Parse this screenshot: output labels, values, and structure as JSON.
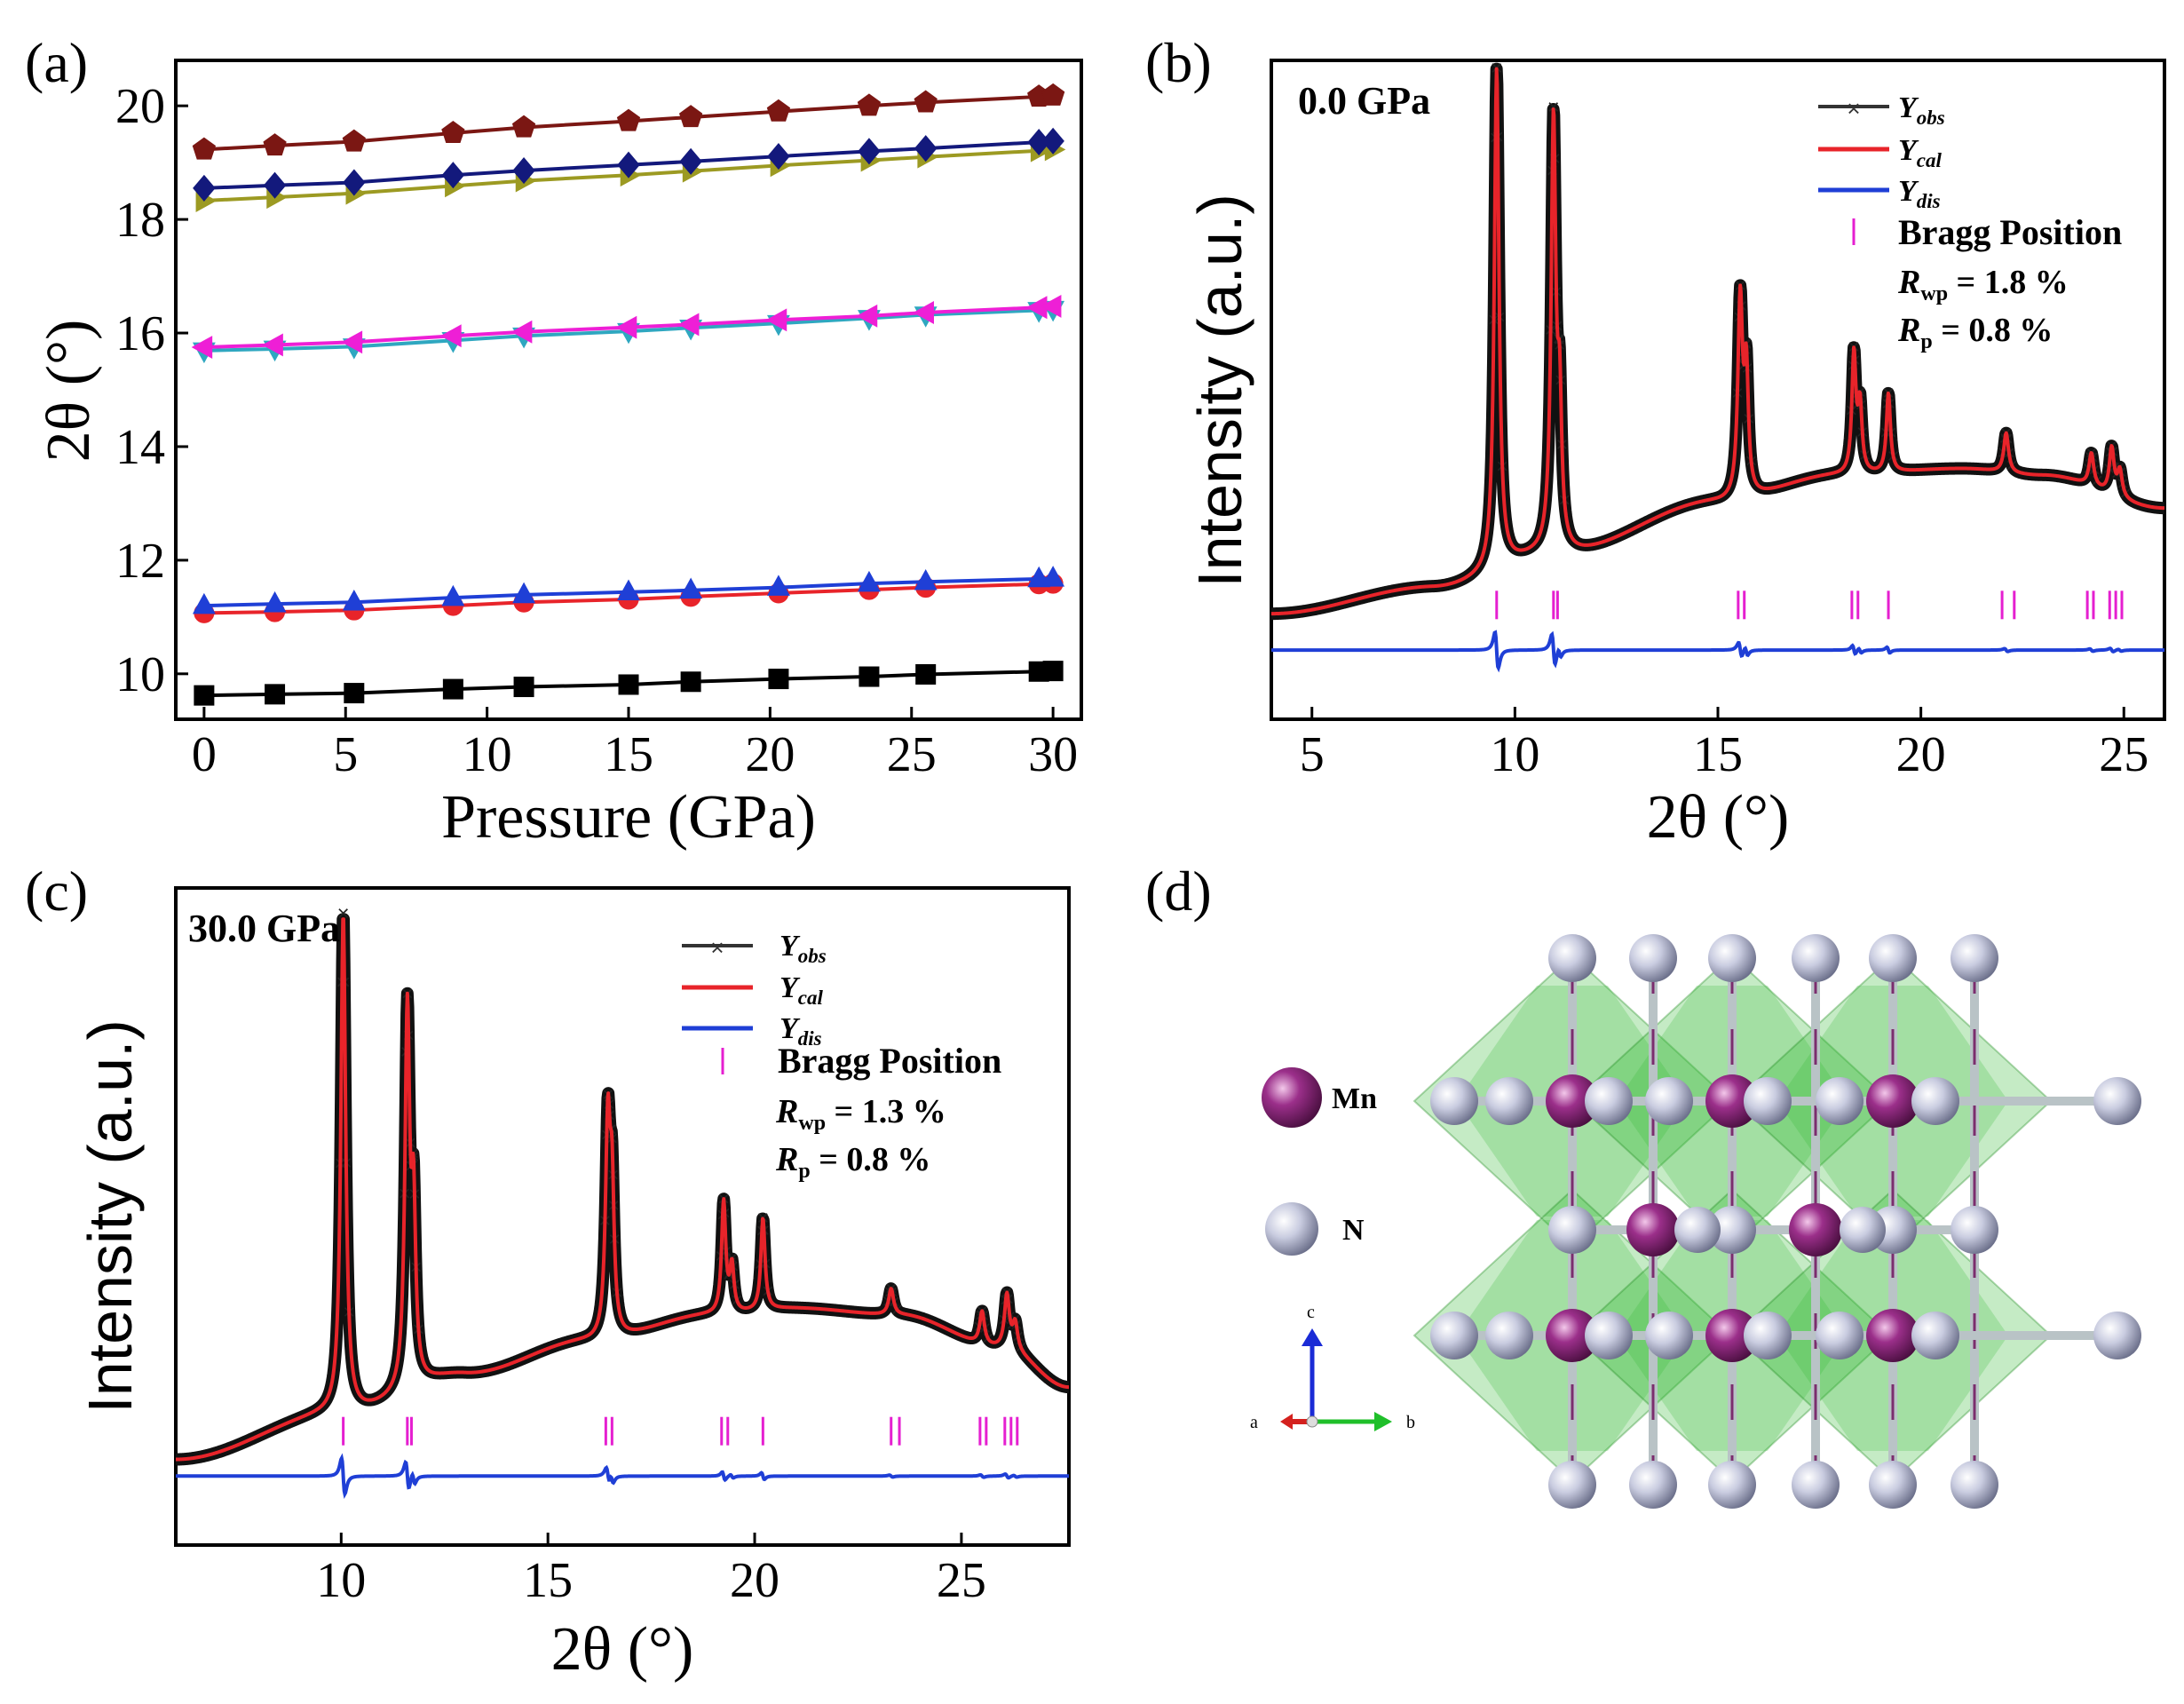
{
  "panels": {
    "a": {
      "label": "(a)"
    },
    "b": {
      "label": "(b)"
    },
    "c": {
      "label": "(c)"
    },
    "d": {
      "label": "(d)"
    }
  },
  "chart_data": [
    {
      "panel": "a",
      "type": "line",
      "xlabel": "Pressure (GPa)",
      "ylabel": "2θ (°)",
      "xlim": [
        -1,
        31
      ],
      "ylim": [
        9.2,
        20.8
      ],
      "xticks": [
        0,
        5,
        10,
        15,
        20,
        25,
        30
      ],
      "yticks": [
        10,
        12,
        14,
        16,
        18,
        20
      ],
      "x": [
        0,
        2.5,
        5.3,
        8.8,
        11.3,
        15,
        17.2,
        20.3,
        23.5,
        25.5,
        29.5,
        30
      ],
      "series": [
        {
          "name": "series-1",
          "color": "#000000",
          "marker": "square",
          "values": [
            9.62,
            9.64,
            9.66,
            9.73,
            9.77,
            9.81,
            9.86,
            9.91,
            9.95,
            9.99,
            10.04,
            10.05
          ]
        },
        {
          "name": "series-2",
          "color": "#e8242a",
          "marker": "circle",
          "values": [
            11.07,
            11.09,
            11.12,
            11.2,
            11.26,
            11.31,
            11.36,
            11.42,
            11.48,
            11.52,
            11.58,
            11.59
          ]
        },
        {
          "name": "series-3",
          "color": "#1f3fd6",
          "marker": "triangle-up",
          "values": [
            11.2,
            11.23,
            11.26,
            11.34,
            11.39,
            11.44,
            11.47,
            11.52,
            11.59,
            11.62,
            11.67,
            11.68
          ]
        },
        {
          "name": "series-4",
          "color": "#2fa7c0",
          "marker": "triangle-down",
          "values": [
            15.69,
            15.72,
            15.76,
            15.87,
            15.95,
            16.03,
            16.09,
            16.17,
            16.26,
            16.32,
            16.4,
            16.42
          ]
        },
        {
          "name": "series-5",
          "color": "#ee1fd6",
          "marker": "triangle-left",
          "values": [
            15.75,
            15.79,
            15.84,
            15.95,
            16.02,
            16.1,
            16.15,
            16.23,
            16.3,
            16.36,
            16.45,
            16.47
          ]
        },
        {
          "name": "series-6",
          "color": "#9c9a22",
          "marker": "triangle-right",
          "values": [
            18.33,
            18.39,
            18.46,
            18.59,
            18.68,
            18.78,
            18.85,
            18.95,
            19.04,
            19.1,
            19.21,
            19.23
          ]
        },
        {
          "name": "series-7",
          "color": "#13197c",
          "marker": "diamond",
          "values": [
            18.55,
            18.6,
            18.65,
            18.78,
            18.86,
            18.96,
            19.02,
            19.11,
            19.2,
            19.25,
            19.36,
            19.38
          ]
        },
        {
          "name": "series-8",
          "color": "#7b1713",
          "marker": "pentagon",
          "values": [
            19.23,
            19.3,
            19.37,
            19.52,
            19.62,
            19.73,
            19.8,
            19.9,
            20.0,
            20.06,
            20.16,
            20.18
          ]
        }
      ]
    },
    {
      "panel": "b",
      "type": "line",
      "title": "0.0 GPa",
      "xlabel": "2θ (°)",
      "ylabel": "Intensity (a.u.)",
      "xlim": [
        4,
        26
      ],
      "xticks": [
        5,
        10,
        15,
        20,
        25
      ],
      "yticks": [],
      "legend": {
        "obs": "Y",
        "obs_sub": "obs",
        "cal": "Y",
        "cal_sub": "cal",
        "dis": "Y",
        "dis_sub": "dis",
        "bragg": "Bragg Position"
      },
      "stats": {
        "rwp_sym": "R",
        "rwp_sub": "wp",
        "rwp_val": " = 1.8 %",
        "rp_sym": "R",
        "rp_sub": "p",
        "rp_val": " = 0.8 %"
      },
      "background": [
        [
          4,
          0.16
        ],
        [
          8,
          0.2
        ],
        [
          11,
          0.25
        ],
        [
          15,
          0.33
        ],
        [
          18,
          0.37
        ],
        [
          21,
          0.38
        ],
        [
          23,
          0.37
        ],
        [
          26,
          0.32
        ]
      ],
      "peaks": [
        {
          "pos": 9.55,
          "height": 0.76,
          "width": 0.07
        },
        {
          "pos": 10.95,
          "height": 0.65,
          "width": 0.07
        },
        {
          "pos": 11.1,
          "height": 0.2,
          "width": 0.06
        },
        {
          "pos": 15.55,
          "height": 0.3,
          "width": 0.07
        },
        {
          "pos": 15.7,
          "height": 0.18,
          "width": 0.06
        },
        {
          "pos": 18.35,
          "height": 0.18,
          "width": 0.06
        },
        {
          "pos": 18.5,
          "height": 0.1,
          "width": 0.06
        },
        {
          "pos": 19.2,
          "height": 0.12,
          "width": 0.06
        },
        {
          "pos": 22.1,
          "height": 0.06,
          "width": 0.07
        },
        {
          "pos": 24.2,
          "height": 0.05,
          "width": 0.07
        },
        {
          "pos": 24.7,
          "height": 0.07,
          "width": 0.07
        },
        {
          "pos": 24.9,
          "height": 0.04,
          "width": 0.07
        }
      ],
      "bragg_positions": [
        9.55,
        10.95,
        11.05,
        15.5,
        15.65,
        18.3,
        18.45,
        19.2,
        22.0,
        22.3,
        24.1,
        24.25,
        24.65,
        24.8,
        24.95
      ]
    },
    {
      "panel": "c",
      "type": "line",
      "title": "30.0 GPa",
      "xlabel": "2θ (°)",
      "ylabel": "Intensity (a.u.)",
      "xlim": [
        6,
        27.6
      ],
      "xticks": [
        10,
        15,
        20,
        25
      ],
      "yticks": [],
      "legend": {
        "obs": "Y",
        "obs_sub": "obs",
        "cal": "Y",
        "cal_sub": "cal",
        "dis": "Y",
        "dis_sub": "dis",
        "bragg": "Bragg Position"
      },
      "stats": {
        "rwp_sym": "R",
        "rwp_sub": "wp",
        "rwp_val": " = 1.3 %",
        "rp_sym": "R",
        "rp_sub": "p",
        "rp_val": " = 0.8 %"
      },
      "background": [
        [
          6,
          0.13
        ],
        [
          10,
          0.2
        ],
        [
          13,
          0.26
        ],
        [
          16,
          0.31
        ],
        [
          19,
          0.35
        ],
        [
          21,
          0.36
        ],
        [
          23.5,
          0.35
        ],
        [
          26,
          0.3
        ],
        [
          27.6,
          0.24
        ]
      ],
      "peaks": [
        {
          "pos": 10.05,
          "height": 0.76,
          "width": 0.07
        },
        {
          "pos": 11.6,
          "height": 0.57,
          "width": 0.07
        },
        {
          "pos": 11.75,
          "height": 0.25,
          "width": 0.06
        },
        {
          "pos": 16.45,
          "height": 0.32,
          "width": 0.07
        },
        {
          "pos": 16.55,
          "height": 0.2,
          "width": 0.06
        },
        {
          "pos": 19.25,
          "height": 0.17,
          "width": 0.06
        },
        {
          "pos": 19.45,
          "height": 0.07,
          "width": 0.06
        },
        {
          "pos": 20.2,
          "height": 0.14,
          "width": 0.06
        },
        {
          "pos": 23.3,
          "height": 0.04,
          "width": 0.07
        },
        {
          "pos": 25.5,
          "height": 0.05,
          "width": 0.07
        },
        {
          "pos": 26.1,
          "height": 0.08,
          "width": 0.07
        },
        {
          "pos": 26.3,
          "height": 0.04,
          "width": 0.07
        }
      ],
      "bragg_positions": [
        10.05,
        11.6,
        11.7,
        16.4,
        16.55,
        19.2,
        19.35,
        20.2,
        23.3,
        23.5,
        25.45,
        25.6,
        26.05,
        26.2,
        26.35
      ]
    }
  ],
  "structure": {
    "legend": [
      {
        "label": "Mn",
        "color": "#8c2b7b"
      },
      {
        "label": "N",
        "color": "#b9bdd4"
      }
    ],
    "axes": {
      "a": "a",
      "b": "b",
      "c": "c"
    },
    "polyhedra_color": "#2fb82f"
  }
}
